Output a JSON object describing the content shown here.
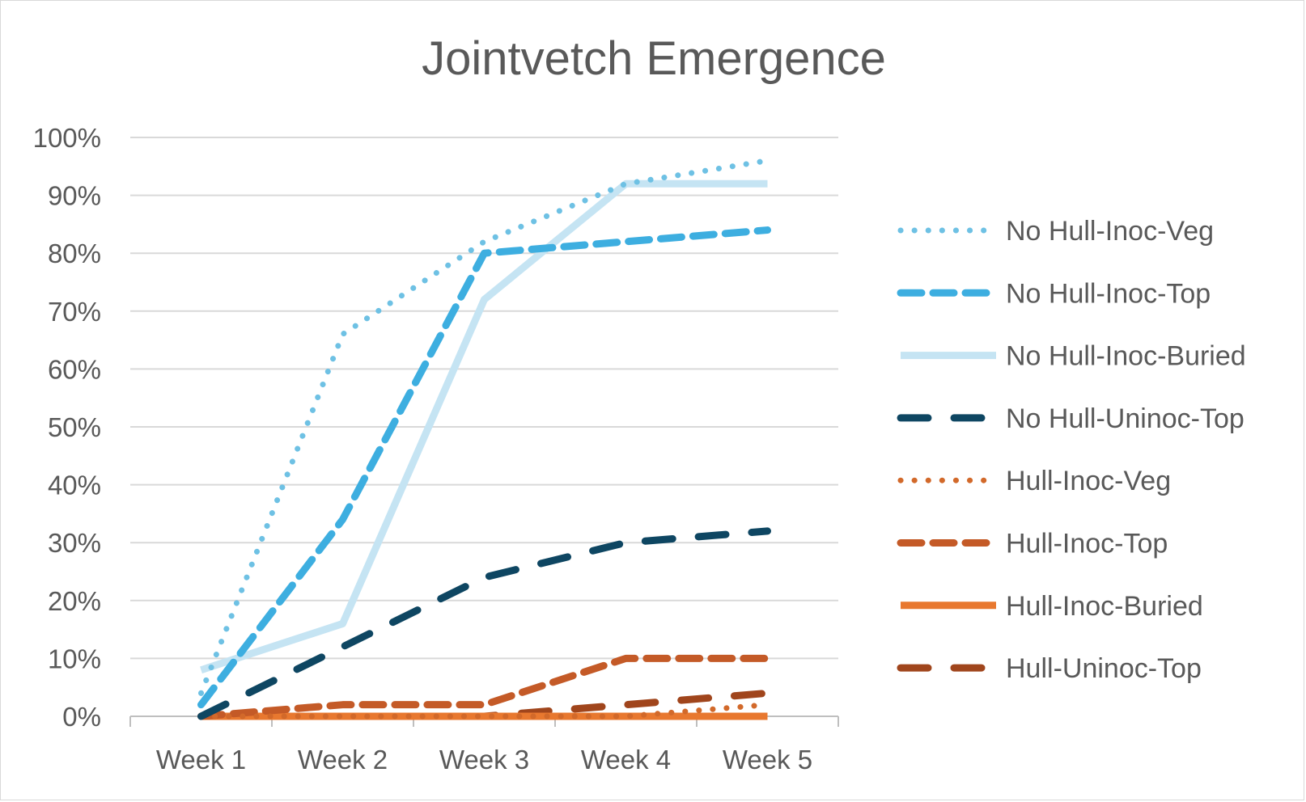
{
  "chart_data": {
    "type": "line",
    "title": "Jointvetch Emergence",
    "xlabel": "",
    "ylabel": "",
    "categories": [
      "Week 1",
      "Week 2",
      "Week 3",
      "Week 4",
      "Week 5"
    ],
    "ylim": [
      0,
      100
    ],
    "yticks": [
      "0%",
      "10%",
      "20%",
      "30%",
      "40%",
      "50%",
      "60%",
      "70%",
      "80%",
      "90%",
      "100%"
    ],
    "grid": true,
    "legend_position": "right",
    "series": [
      {
        "name": "No Hull-Inoc-Veg",
        "values": [
          4,
          66,
          82,
          92,
          96
        ],
        "color": "#6EC1E4",
        "style": "dotted"
      },
      {
        "name": "No Hull-Inoc-Top",
        "values": [
          2,
          34,
          80,
          82,
          84
        ],
        "color": "#3DAEE0",
        "style": "dashed"
      },
      {
        "name": "No Hull-Inoc-Buried",
        "values": [
          8,
          16,
          72,
          92,
          92
        ],
        "color": "#C5E4F3",
        "style": "solid"
      },
      {
        "name": "No Hull-Uninoc-Top",
        "values": [
          0,
          12,
          24,
          30,
          32
        ],
        "color": "#0E4662",
        "style": "longdash"
      },
      {
        "name": "Hull-Inoc-Veg",
        "values": [
          0,
          0,
          0,
          0,
          2
        ],
        "color": "#D2692A",
        "style": "dotted"
      },
      {
        "name": "Hull-Inoc-Top",
        "values": [
          0,
          2,
          2,
          10,
          10
        ],
        "color": "#C45A27",
        "style": "dashed"
      },
      {
        "name": "Hull-Inoc-Buried",
        "values": [
          0,
          0,
          0,
          0,
          0
        ],
        "color": "#E8782F",
        "style": "solid"
      },
      {
        "name": "Hull-Uninoc-Top",
        "values": [
          0,
          0,
          0,
          2,
          4
        ],
        "color": "#A0451C",
        "style": "longdash"
      }
    ]
  }
}
